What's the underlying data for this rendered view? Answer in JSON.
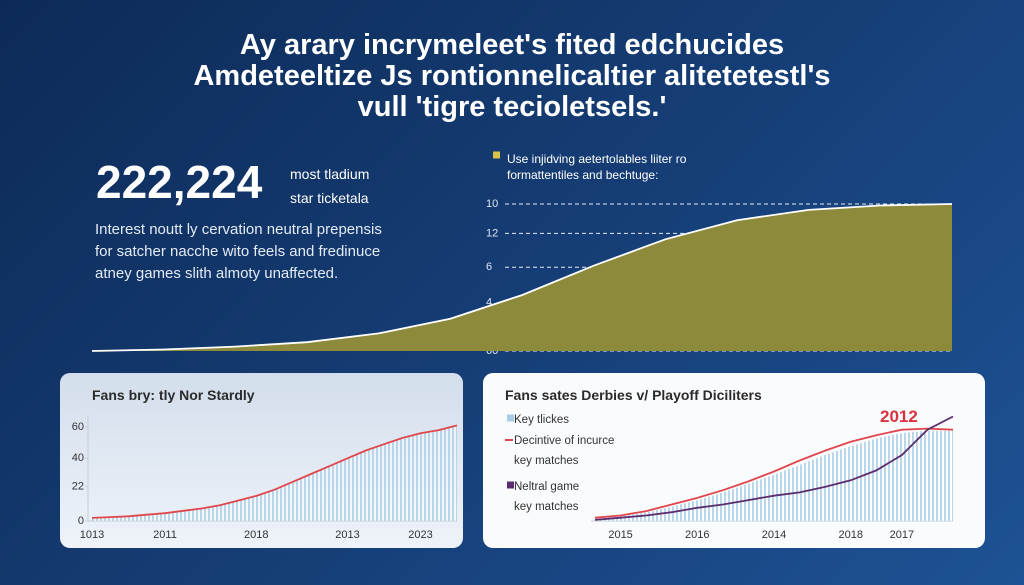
{
  "header": {
    "title": "Ay arary incrymeleet's fited edchucides\nAmdeteeltize Js rontionnelicaltier alitetetestl's\nvull 'tigre tecioletsels.'"
  },
  "stat": {
    "value": "222,224",
    "caption": "most tladium\nstar ticketala",
    "description": "Interest noutt ly cervation neutral prepensis\nfor satcher nacche wito feels and fredinuce\natney games slith almoty unaffected."
  },
  "chart_data": [
    {
      "type": "area",
      "categories": [
        null,
        null,
        null,
        null,
        null,
        null,
        null,
        null,
        null,
        null,
        null,
        null,
        null
      ],
      "series": [
        {
          "name": "Use injidving aetertolables liiter ro\nformattentiles and bechtuge:",
          "color": "#8d8a3c",
          "line_color": "#ffffff",
          "values": [
            0,
            0.1,
            0.3,
            0.6,
            1.2,
            2.2,
            3.8,
            5.8,
            7.6,
            8.9,
            9.6,
            9.9,
            10
          ]
        }
      ],
      "ylim": [
        0,
        10
      ],
      "yticks": [
        10,
        {
          "value": 8,
          "label": "12"
        },
        {
          "value": 5.7,
          "label": "6"
        },
        {
          "value": 3.3,
          "label": "4"
        },
        {
          "value": 0,
          "label": "60"
        }
      ],
      "grid": true
    },
    {
      "type": "area",
      "title": "Fans bry: tly Nor Stardly",
      "categories": [
        "1013",
        null,
        null,
        null,
        "2011",
        null,
        null,
        null,
        null,
        "2018",
        null,
        null,
        null,
        null,
        "2013",
        null,
        null,
        null,
        "2023",
        null,
        null
      ],
      "values": [
        2,
        2.5,
        3,
        4,
        5,
        6.5,
        8,
        10,
        13,
        16,
        20,
        25,
        30,
        35,
        40,
        45,
        49,
        53,
        56,
        58,
        61
      ],
      "color": "#a9cde6",
      "line_color": "#e0474c",
      "fill_style": "stripes",
      "ylim": [
        0,
        60
      ],
      "yticks": [
        60,
        40,
        22,
        0
      ],
      "grid": false
    },
    {
      "type": "line",
      "title": "Fans sates Derbies v/ Playoff Diciliters",
      "categories": [
        null,
        "2015",
        null,
        null,
        "2016",
        null,
        null,
        "2014",
        null,
        null,
        "2018",
        null,
        "2017",
        null,
        null
      ],
      "ylim": [
        0,
        100
      ],
      "annotation": {
        "text": "2012",
        "color": "#d8323c"
      },
      "series": [
        {
          "name": "Key tlickes",
          "type": "area",
          "fill_style": "stripes",
          "color": "#a9cde6",
          "values": [
            2,
            4,
            8,
            13,
            19,
            26,
            34,
            42,
            51,
            60,
            68,
            75,
            80,
            82,
            82
          ]
        },
        {
          "name": "Decintive of incurce\nkey matches",
          "type": "line",
          "color": "#e0474c",
          "values": [
            3,
            5,
            9,
            15,
            21,
            28,
            36,
            45,
            55,
            64,
            72,
            78,
            83,
            84,
            83
          ]
        },
        {
          "name": "Neltral game\nkey matches",
          "type": "line",
          "color": "#5b2d6e",
          "values": [
            1,
            3,
            5,
            8,
            12,
            15,
            19,
            23,
            26,
            31,
            37,
            46,
            60,
            83,
            95
          ]
        }
      ]
    }
  ]
}
